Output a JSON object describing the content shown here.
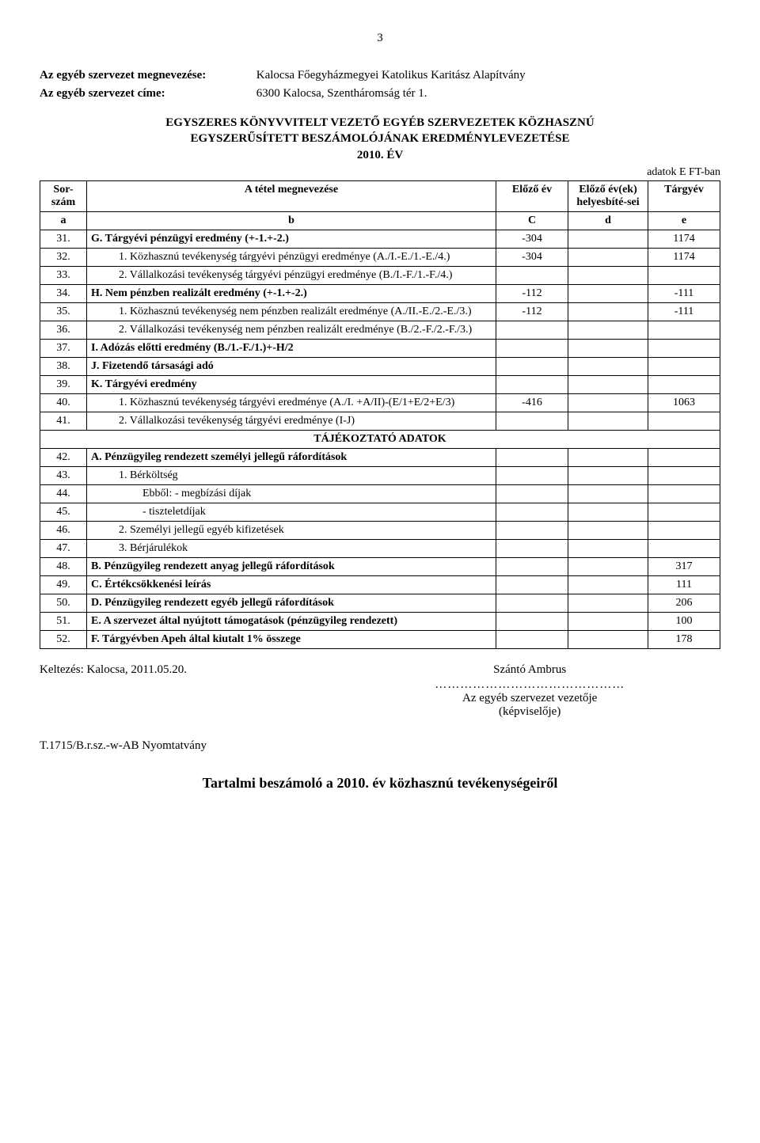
{
  "page_number": "3",
  "header": {
    "org_label": "Az egyéb szervezet megnevezése:",
    "org_value": "Kalocsa Főegyházmegyei Katolikus Karitász Alapítvány",
    "addr_label": "Az egyéb szervezet címe:",
    "addr_value": "6300 Kalocsa, Szentháromság tér 1."
  },
  "section_title_1": "EGYSZERES KÖNYVVITELT VEZETŐ EGYÉB SZERVEZETEK KÖZHASZNÚ",
  "section_title_2": "EGYSZERŰSÍTETT BESZÁMOLÓJÁNAK EREDMÉNYLEVEZETÉSE",
  "section_title_3": "2010. ÉV",
  "units_note": "adatok E FT-ban",
  "table": {
    "head": {
      "a": "Sor-szám",
      "b": "A tétel megnevezése",
      "c": "Előző év",
      "d": "Előző év(ek) helyesbíté-sei",
      "e": "Tárgyév"
    },
    "subhead": {
      "a": "a",
      "b": "b",
      "c": "C",
      "d": "d",
      "e": "e"
    },
    "rows": [
      {
        "a": "31.",
        "b": "G. Tárgyévi pénzügyi eredmény (+-1.+-2.)",
        "c": "-304",
        "d": "",
        "e": "1174",
        "bold": true
      },
      {
        "a": "32.",
        "b": "1. Közhasznú tevékenység tárgyévi pénzügyi eredménye (A./I.-E./1.-E./4.)",
        "c": "-304",
        "d": "",
        "e": "1174",
        "indent": 1
      },
      {
        "a": "33.",
        "b": "2. Vállalkozási tevékenység tárgyévi pénzügyi eredménye (B./I.-F./1.-F./4.)",
        "c": "",
        "d": "",
        "e": "",
        "indent": 1
      },
      {
        "a": "34.",
        "b": "H. Nem pénzben realizált eredmény (+-1.+-2.)",
        "c": "-112",
        "d": "",
        "e": "-111",
        "bold": true
      },
      {
        "a": "35.",
        "b": "1. Közhasznú tevékenység nem pénzben realizált eredménye (A./II.-E./2.-E./3.)",
        "c": "-112",
        "d": "",
        "e": "-111",
        "indent": 1
      },
      {
        "a": "36.",
        "b": "2. Vállalkozási tevékenység nem pénzben realizált eredménye (B./2.-F./2.-F./3.)",
        "c": "",
        "d": "",
        "e": "",
        "indent": 1
      },
      {
        "a": "37.",
        "b": "I. Adózás előtti eredmény (B./1.-F./1.)+-H/2",
        "c": "",
        "d": "",
        "e": "",
        "bold": true
      },
      {
        "a": "38.",
        "b": "J. Fizetendő társasági adó",
        "c": "",
        "d": "",
        "e": "",
        "bold": true
      },
      {
        "a": "39.",
        "b": "K. Tárgyévi eredmény",
        "c": "",
        "d": "",
        "e": "",
        "bold": true
      },
      {
        "a": "40.",
        "b": "1. Közhasznú tevékenység tárgyévi eredménye (A./I. +A/II)-(E/1+E/2+E/3)",
        "c": "-416",
        "d": "",
        "e": "1063",
        "indent": 1
      },
      {
        "a": "41.",
        "b": "2. Vállalkozási tevékenység tárgyévi eredménye (I-J)",
        "c": "",
        "d": "",
        "e": "",
        "indent": 1
      },
      {
        "section": "TÁJÉKOZTATÓ ADATOK"
      },
      {
        "a": "42.",
        "b": "A. Pénzügyileg rendezett személyi jellegű ráfordítások",
        "c": "",
        "d": "",
        "e": "",
        "bold": true
      },
      {
        "a": "43.",
        "b": "1. Bérköltség",
        "c": "",
        "d": "",
        "e": "",
        "indent": 1
      },
      {
        "a": "44.",
        "b": "Ebből: - megbízási díjak",
        "c": "",
        "d": "",
        "e": "",
        "indent": 2
      },
      {
        "a": "45.",
        "b": "- tiszteletdíjak",
        "c": "",
        "d": "",
        "e": "",
        "indent": 2
      },
      {
        "a": "46.",
        "b": "2. Személyi jellegű egyéb kifizetések",
        "c": "",
        "d": "",
        "e": "",
        "indent": 1
      },
      {
        "a": "47.",
        "b": "3. Bérjárulékok",
        "c": "",
        "d": "",
        "e": "",
        "indent": 1
      },
      {
        "a": "48.",
        "b": "B. Pénzügyileg rendezett anyag jellegű ráfordítások",
        "c": "",
        "d": "",
        "e": "317",
        "bold": true
      },
      {
        "a": "49.",
        "b": "C. Értékcsökkenési leírás",
        "c": "",
        "d": "",
        "e": "111",
        "bold": true
      },
      {
        "a": "50.",
        "b": "D. Pénzügyileg rendezett egyéb jellegű ráfordítások",
        "c": "",
        "d": "",
        "e": "206",
        "bold": true
      },
      {
        "a": "51.",
        "b": "E. A szervezet által nyújtott támogatások (pénzügyileg rendezett)",
        "c": "",
        "d": "",
        "e": "100",
        "bold": true
      },
      {
        "a": "52.",
        "b": "F. Tárgyévben Apeh által kiutalt 1% összege",
        "c": "",
        "d": "",
        "e": "178",
        "bold": true
      }
    ]
  },
  "dating": "Keltezés: Kalocsa, 2011.05.20.",
  "signature": {
    "name": "Szántó Ambrus",
    "dots": "………………………………………",
    "role1": "Az egyéb szervezet vezetője",
    "role2": "(képviselője)"
  },
  "form_code": "T.1715/B.r.sz.-w-AB Nyomtatvány",
  "bottom_title": "Tartalmi beszámoló a 2010. év közhasznú tevékenységeiről"
}
